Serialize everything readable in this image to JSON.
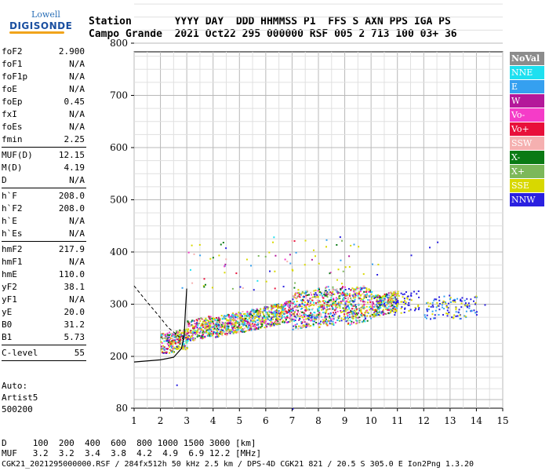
{
  "logo": {
    "line1": "Lowell",
    "line2": "DIGISONDE"
  },
  "header": {
    "line1": "Station       YYYY DAY  DDD HHMMSS P1  FFS S AXN PPS IGA PS",
    "line2": "Campo Grande  2021 Oct22 295 000000 RSF 005 2 713 100 03+ 36"
  },
  "params": [
    {
      "k": "foF2",
      "v": "2.900"
    },
    {
      "k": "foF1",
      "v": "N/A"
    },
    {
      "k": "foF1p",
      "v": "N/A"
    },
    {
      "k": "foE",
      "v": "N/A"
    },
    {
      "k": "foEp",
      "v": "0.45"
    },
    {
      "k": "fxI",
      "v": "N/A"
    },
    {
      "k": "foEs",
      "v": "N/A"
    },
    {
      "k": "fmin",
      "v": "2.25"
    },
    {
      "k": "MUF(D)",
      "v": "12.15"
    },
    {
      "k": "M(D)",
      "v": "4.19"
    },
    {
      "k": "D",
      "v": "N/A"
    },
    {
      "k": "h`F",
      "v": "208.0"
    },
    {
      "k": "h`F2",
      "v": "208.0"
    },
    {
      "k": "h`E",
      "v": "N/A"
    },
    {
      "k": "h`Es",
      "v": "N/A"
    },
    {
      "k": "hmF2",
      "v": "217.9"
    },
    {
      "k": "hmF1",
      "v": "N/A"
    },
    {
      "k": "hmE",
      "v": "110.0"
    },
    {
      "k": "yF2",
      "v": "38.1"
    },
    {
      "k": "yF1",
      "v": "N/A"
    },
    {
      "k": "yE",
      "v": "20.0"
    },
    {
      "k": "B0",
      "v": "31.2"
    },
    {
      "k": "B1",
      "v": "5.73"
    },
    {
      "k": "C-level",
      "v": "55"
    }
  ],
  "auto": {
    "line1": "Auto:",
    "line2": "Artist5",
    "line3": "500200"
  },
  "legend": [
    {
      "label": "NoVal",
      "color": "#8c8c8c"
    },
    {
      "label": "NNE",
      "color": "#1ee0f0"
    },
    {
      "label": "E",
      "color": "#35a0f0"
    },
    {
      "label": "W",
      "color": "#b4189a"
    },
    {
      "label": "Vo-",
      "color": "#f53cc8"
    },
    {
      "label": "Vo+",
      "color": "#e8103a"
    },
    {
      "label": "SSW",
      "color": "#f5b0b0"
    },
    {
      "label": "X-",
      "color": "#0a7a14"
    },
    {
      "label": "X+",
      "color": "#7cb85a"
    },
    {
      "label": "SSE",
      "color": "#d8d800"
    },
    {
      "label": "NNW",
      "color": "#2a20e0"
    }
  ],
  "muf": {
    "line1": "D     100  200  400  600  800 1000 1500 3000 [km]",
    "line2": "MUF   3.2  3.2  3.4  3.8  4.2  4.9  6.9 12.2 [MHz]"
  },
  "footer": "CGK21_2021295000000.RSF / 284fx512h 50 kHz 2.5 km / DPS-4D CGK21 821 / 20.5 S 305.0 E Ion2Png 1.3.20",
  "chart_data": {
    "type": "scatter",
    "xlabel": "",
    "ylabel": "",
    "xlim": [
      1,
      15
    ],
    "ylim": [
      80,
      900
    ],
    "xticks": [
      1,
      2,
      3,
      4,
      5,
      6,
      7,
      8,
      9,
      10,
      11,
      12,
      13,
      14,
      15
    ],
    "yticks": [
      80,
      200,
      300,
      400,
      500,
      600,
      700,
      800,
      900
    ],
    "grid": true,
    "band_centers": [
      {
        "x": 2.5,
        "y": 230
      },
      {
        "x": 3.5,
        "y": 255
      },
      {
        "x": 4.5,
        "y": 262
      },
      {
        "x": 5.5,
        "y": 272
      },
      {
        "x": 6.5,
        "y": 283
      },
      {
        "x": 7.5,
        "y": 292
      },
      {
        "x": 8.5,
        "y": 296
      },
      {
        "x": 9.5,
        "y": 300
      },
      {
        "x": 10.5,
        "y": 302
      },
      {
        "x": 11.3,
        "y": 305
      },
      {
        "x": 12.5,
        "y": 295
      },
      {
        "x": 13.5,
        "y": 295
      }
    ],
    "isolated_points": [
      {
        "x": 12.2,
        "y": 410
      },
      {
        "x": 12.5,
        "y": 420
      },
      {
        "x": 11.5,
        "y": 395
      },
      {
        "x": 7.0,
        "y": 80
      },
      {
        "x": 2.6,
        "y": 135
      },
      {
        "x": 8.8,
        "y": 430
      },
      {
        "x": 14.3,
        "y": 300
      },
      {
        "x": 13.4,
        "y": 296
      }
    ],
    "profile_curve": [
      {
        "x": 1.0,
        "y": 187
      },
      {
        "x": 2.0,
        "y": 192
      },
      {
        "x": 2.5,
        "y": 198
      },
      {
        "x": 2.8,
        "y": 215
      },
      {
        "x": 2.9,
        "y": 240
      },
      {
        "x": 2.95,
        "y": 290
      },
      {
        "x": 3.0,
        "y": 330
      }
    ],
    "dashed_curve": [
      {
        "x": 1.0,
        "y": 335
      },
      {
        "x": 1.4,
        "y": 310
      },
      {
        "x": 1.9,
        "y": 280
      },
      {
        "x": 2.3,
        "y": 255
      },
      {
        "x": 2.7,
        "y": 238
      },
      {
        "x": 2.9,
        "y": 232
      }
    ]
  }
}
